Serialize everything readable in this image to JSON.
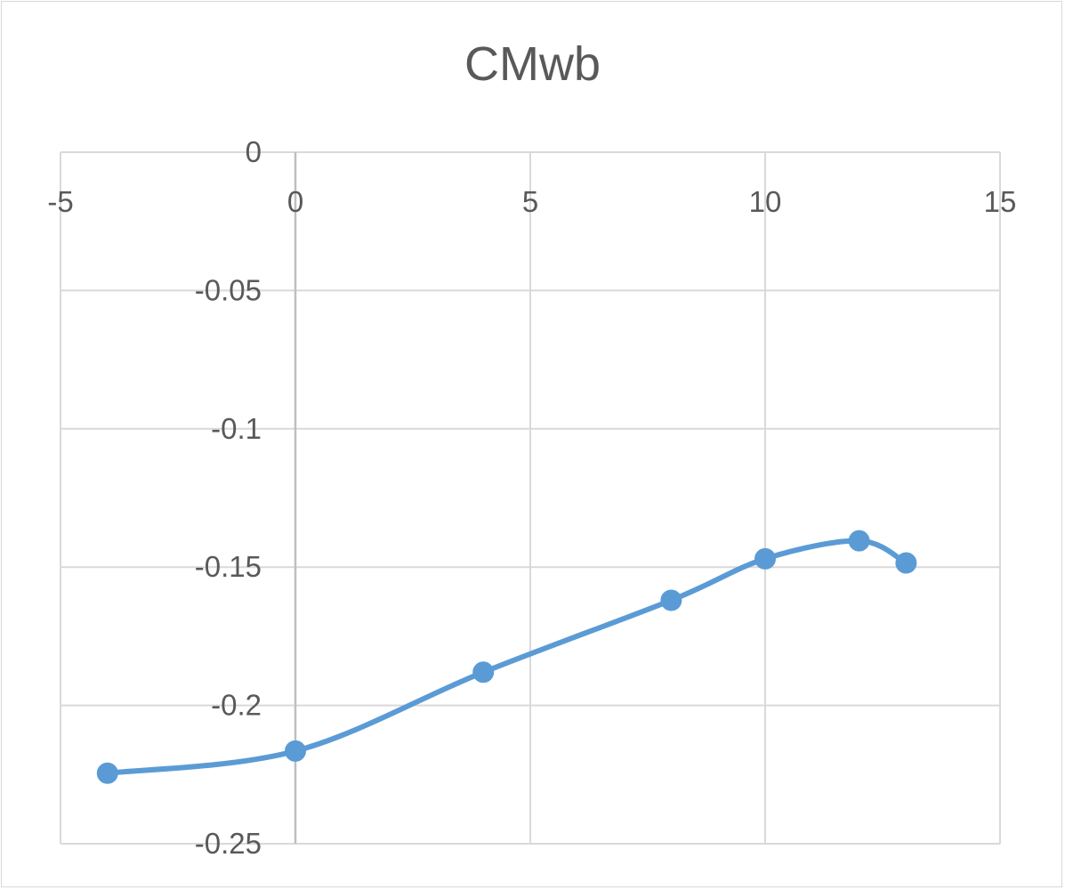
{
  "chart_data": {
    "type": "scatter",
    "style": "smooth-line-with-markers",
    "title": "CMwb",
    "xlabel": "",
    "ylabel": "",
    "xlim": [
      -5,
      15
    ],
    "ylim": [
      -0.25,
      0
    ],
    "x_ticks": [
      -5,
      0,
      5,
      10,
      15
    ],
    "y_ticks": [
      0,
      -0.05,
      -0.1,
      -0.15,
      -0.2,
      -0.25
    ],
    "x_tick_labels": [
      "-5",
      "0",
      "5",
      "10",
      "15"
    ],
    "y_tick_labels": [
      "0",
      "-0.05",
      "-0.1",
      "-0.15",
      "-0.2",
      "-0.25"
    ],
    "grid": true,
    "legend": "none",
    "series": [
      {
        "color": "#5b9bd5",
        "x": [
          -4,
          0,
          4,
          8,
          10,
          12,
          13
        ],
        "y": [
          -0.2245,
          -0.2165,
          -0.188,
          -0.162,
          -0.147,
          -0.1405,
          -0.1485
        ]
      }
    ]
  }
}
